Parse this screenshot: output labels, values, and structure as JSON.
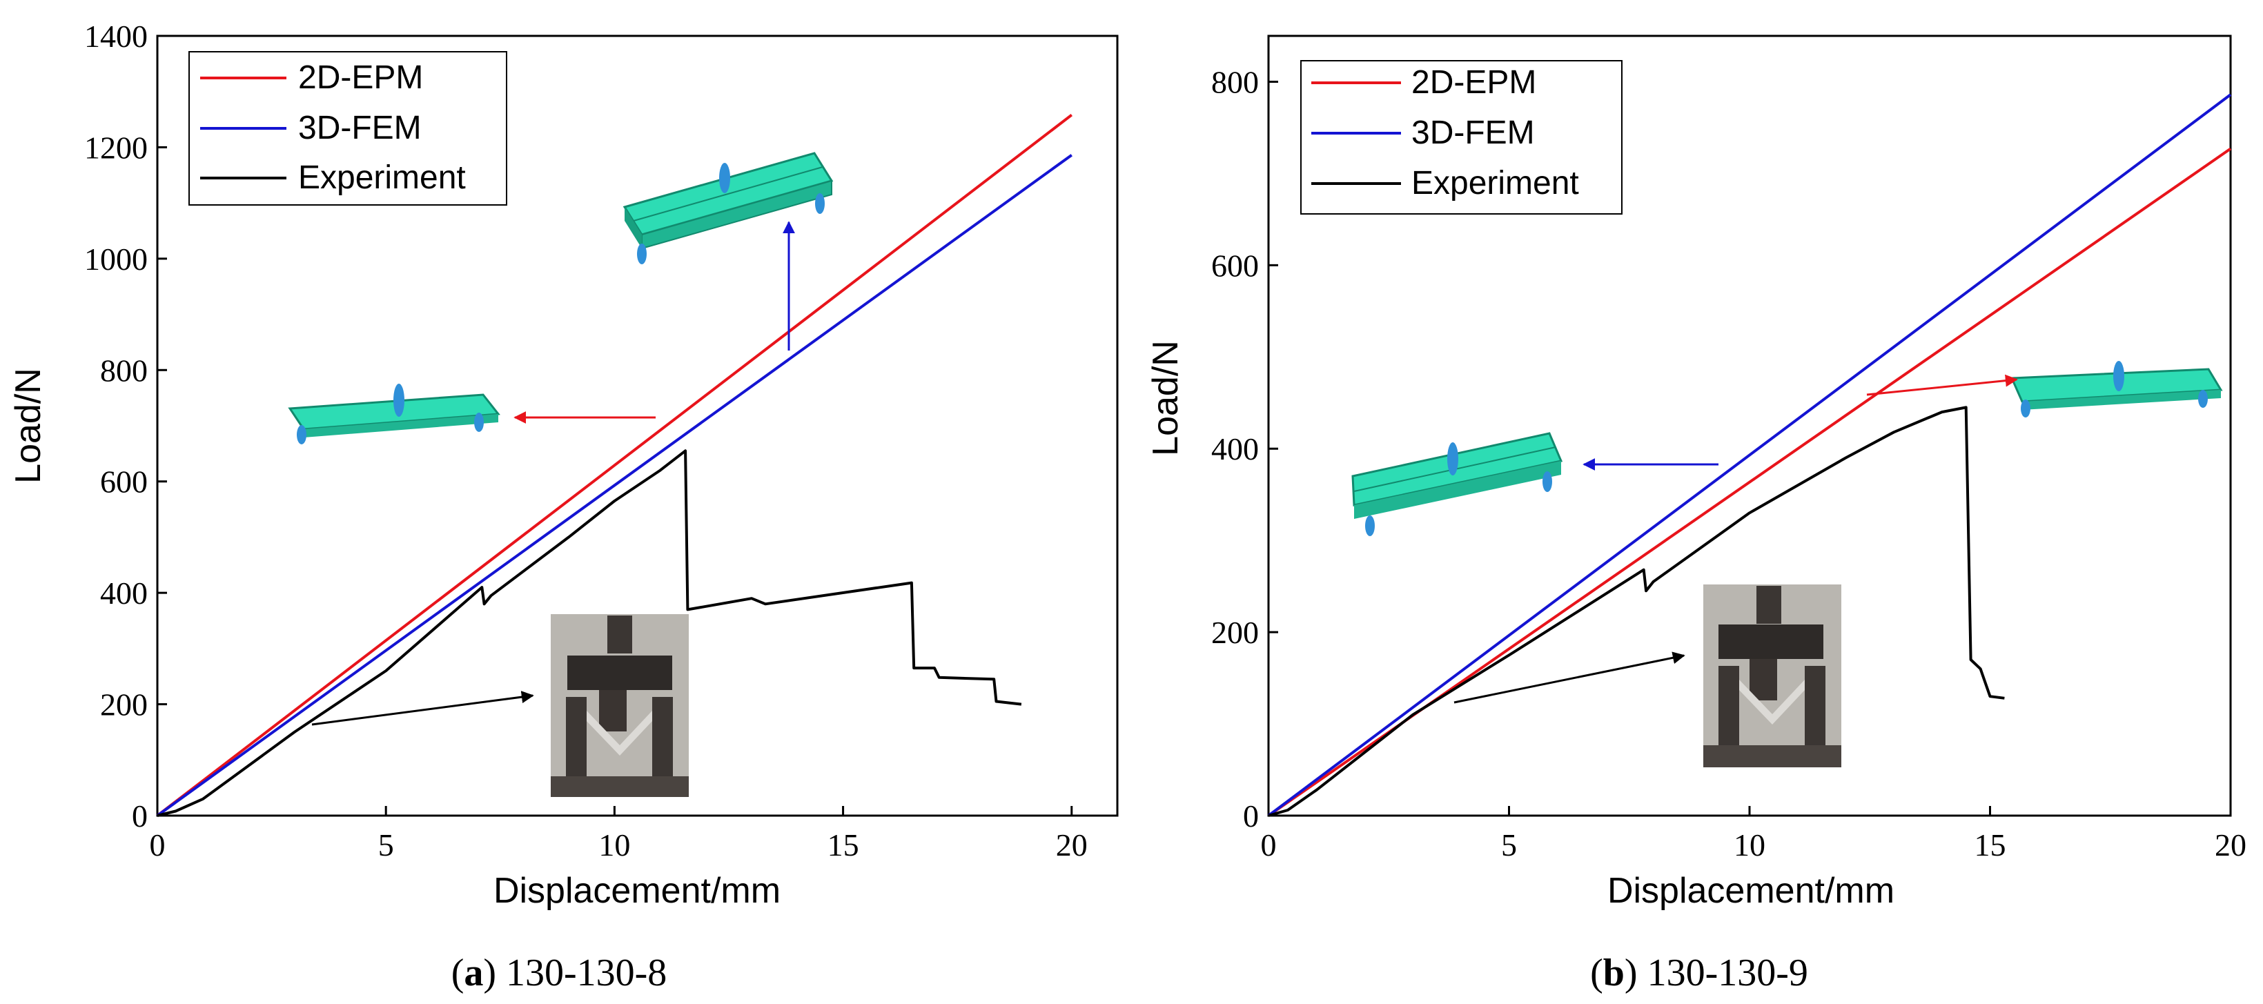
{
  "chart_data": [
    {
      "type": "line",
      "panel": "a",
      "caption_letter": "a",
      "caption_text": "130-130-8",
      "xlabel": "Displacement/mm",
      "ylabel": "Load/N",
      "xlim": [
        0,
        21
      ],
      "ylim": [
        0,
        1400
      ],
      "xticks": [
        0,
        5,
        10,
        15,
        20
      ],
      "yticks": [
        0,
        200,
        400,
        600,
        800,
        1000,
        1200,
        1400
      ],
      "legend_position": "top-left",
      "series": [
        {
          "name": "2D-EPM",
          "color": "#e8141b",
          "points": [
            [
              0,
              0
            ],
            [
              20,
              1258
            ]
          ]
        },
        {
          "name": "3D-FEM",
          "color": "#1414d2",
          "points": [
            [
              0,
              0
            ],
            [
              20,
              1186
            ]
          ]
        },
        {
          "name": "Experiment",
          "color": "#000000",
          "points": [
            [
              0,
              0
            ],
            [
              0.4,
              8
            ],
            [
              1,
              30
            ],
            [
              3,
              150
            ],
            [
              5,
              260
            ],
            [
              7.1,
              410
            ],
            [
              7.15,
              380
            ],
            [
              7.3,
              395
            ],
            [
              9,
              500
            ],
            [
              10,
              565
            ],
            [
              11,
              620
            ],
            [
              11.55,
              655
            ],
            [
              11.6,
              370
            ],
            [
              13,
              390
            ],
            [
              13.3,
              380
            ],
            [
              16.5,
              418
            ],
            [
              16.55,
              265
            ],
            [
              17,
              265
            ],
            [
              17.1,
              248
            ],
            [
              18.3,
              245
            ],
            [
              18.35,
              205
            ],
            [
              18.9,
              200
            ]
          ]
        }
      ],
      "annotations": [
        "red arrow from 2D-EPM to flat beam model inset",
        "blue arrow from 3D-FEM up to beam model inset",
        "black arrow from Experiment to test photo inset"
      ]
    },
    {
      "type": "line",
      "panel": "b",
      "caption_letter": "b",
      "caption_text": "130-130-9",
      "xlabel": "Displacement/mm",
      "ylabel": "Load/N",
      "xlim": [
        0,
        20
      ],
      "ylim": [
        0,
        850
      ],
      "xticks": [
        0,
        5,
        10,
        15,
        20
      ],
      "yticks": [
        0,
        200,
        400,
        600,
        800
      ],
      "legend_position": "top-left",
      "series": [
        {
          "name": "2D-EPM",
          "color": "#e8141b",
          "points": [
            [
              0,
              0
            ],
            [
              20,
              727
            ]
          ]
        },
        {
          "name": "3D-FEM",
          "color": "#1414d2",
          "points": [
            [
              0,
              0
            ],
            [
              20,
              786
            ]
          ]
        },
        {
          "name": "Experiment",
          "color": "#000000",
          "points": [
            [
              0,
              0
            ],
            [
              0.4,
              6
            ],
            [
              1,
              28
            ],
            [
              3,
              110
            ],
            [
              5,
              175
            ],
            [
              7.8,
              268
            ],
            [
              7.85,
              245
            ],
            [
              8,
              255
            ],
            [
              10,
              330
            ],
            [
              12,
              390
            ],
            [
              13,
              418
            ],
            [
              14,
              440
            ],
            [
              14.5,
              445
            ],
            [
              14.6,
              170
            ],
            [
              14.8,
              160
            ],
            [
              15,
              130
            ],
            [
              15.3,
              128
            ]
          ]
        }
      ],
      "annotations": [
        "red arrow from 2D-EPM to beam model inset",
        "blue arrow from 3D-FEM to beam model inset",
        "black arrow from Experiment to test photo inset"
      ]
    }
  ]
}
